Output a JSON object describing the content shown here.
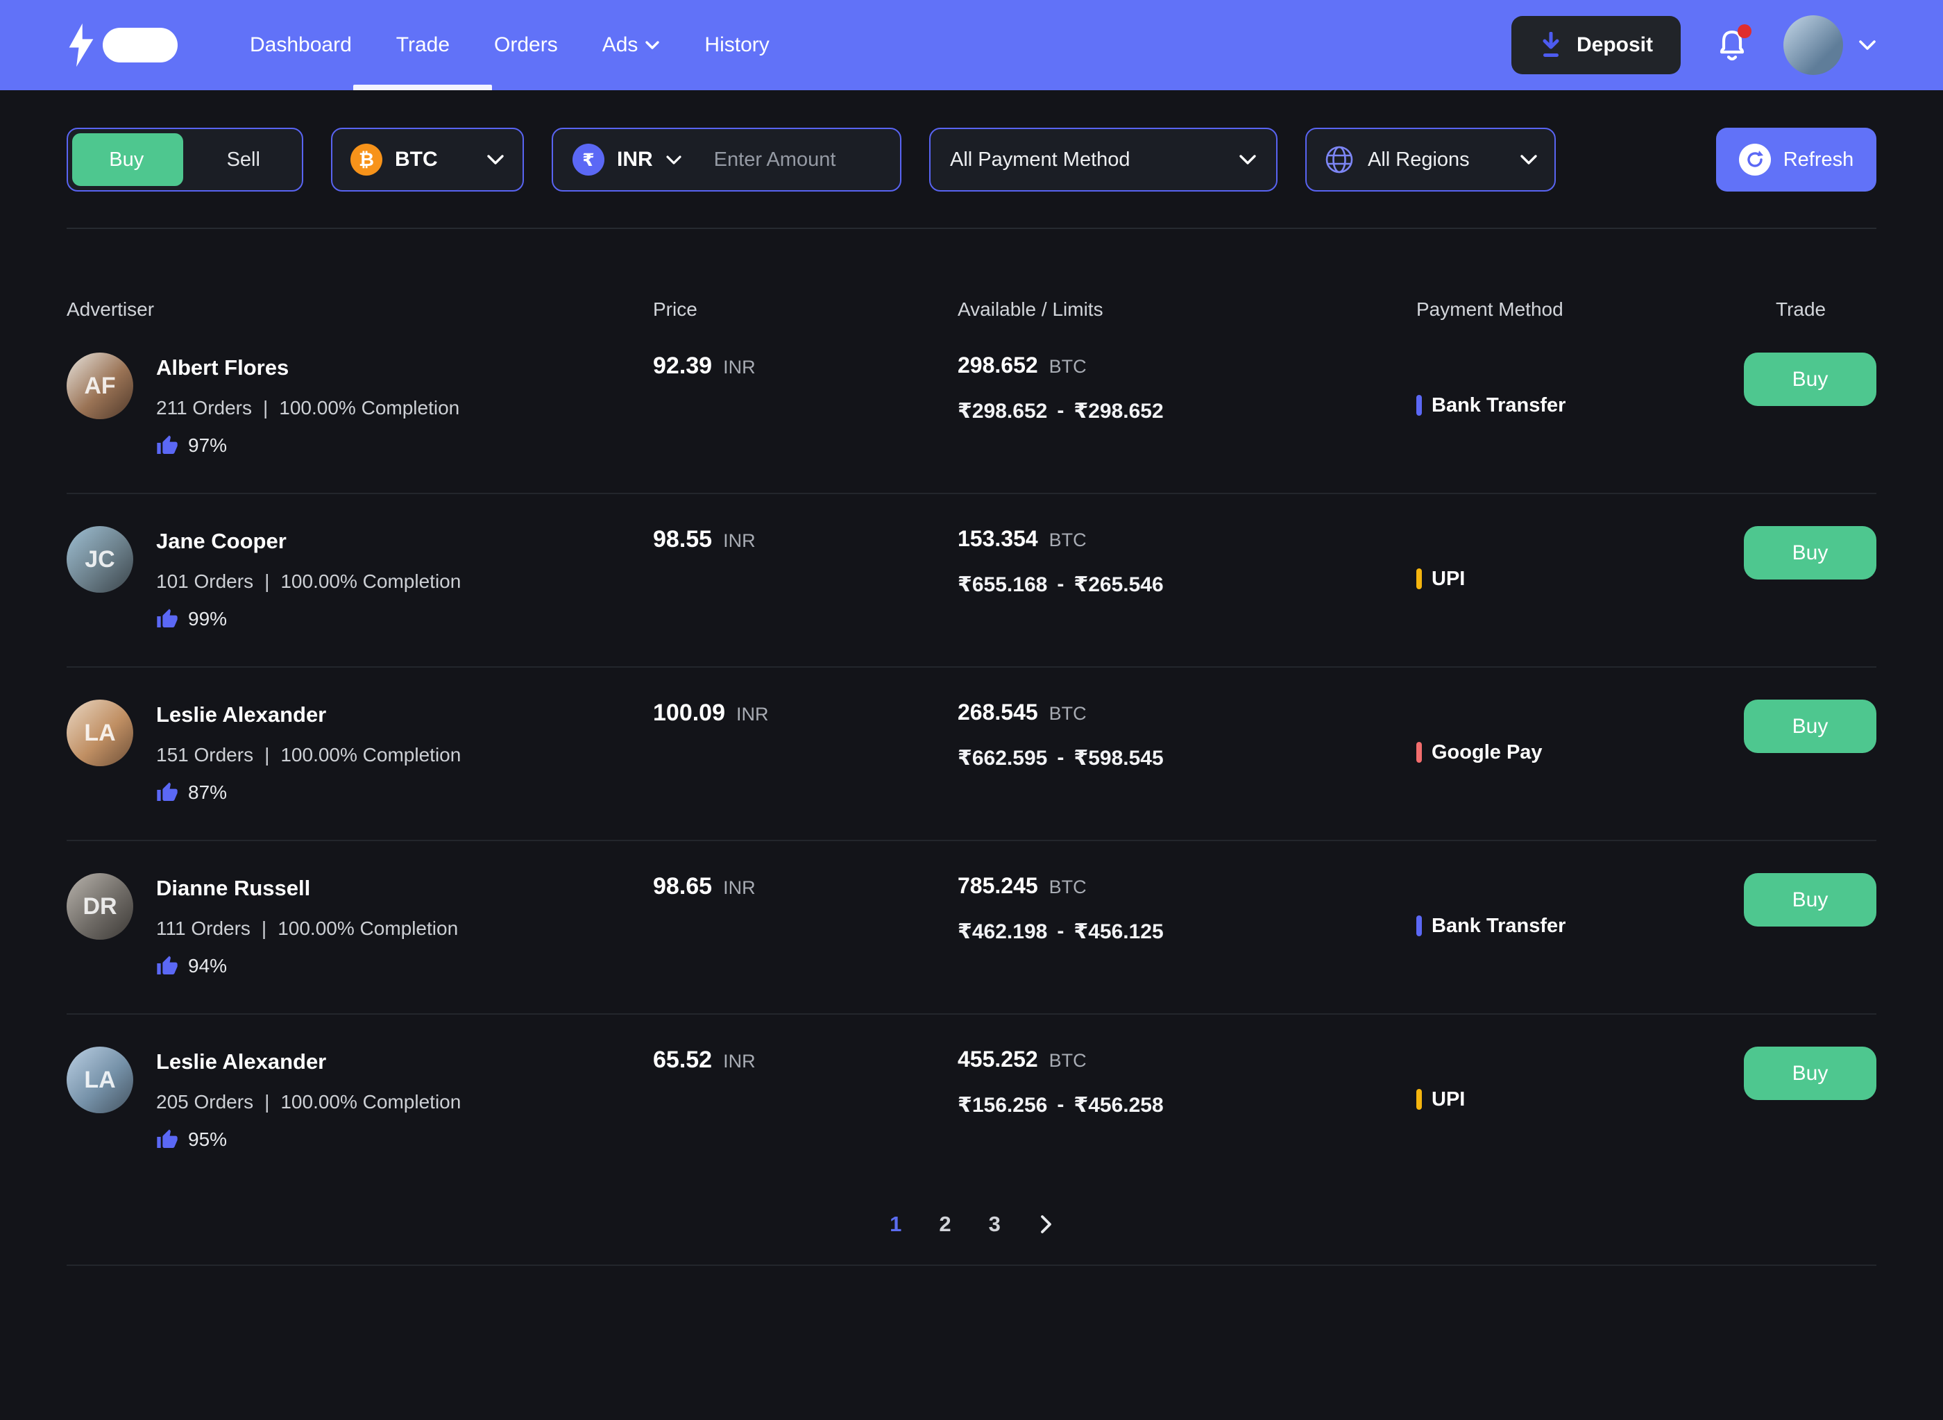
{
  "navbar": {
    "items": [
      {
        "label": "Dashboard",
        "active": false
      },
      {
        "label": "Trade",
        "active": true
      },
      {
        "label": "Orders",
        "active": false
      },
      {
        "label": "Ads",
        "active": false,
        "has_dropdown": true
      },
      {
        "label": "History",
        "active": false
      }
    ],
    "deposit_label": "Deposit",
    "notification_dot": true,
    "accent_color": "#6172f8"
  },
  "filters": {
    "side_toggle": {
      "buy_label": "Buy",
      "sell_label": "Sell",
      "active": "Buy",
      "active_color": "#4ec78f"
    },
    "crypto": {
      "label": "BTC",
      "icon": "bitcoin-icon",
      "icon_color": "#f7931a",
      "icon_glyph": "₿"
    },
    "fiat": {
      "label": "INR",
      "icon": "rupee-icon",
      "icon_color": "#5b68f5",
      "icon_glyph": "₹"
    },
    "amount_placeholder": "Enter Amount",
    "payment_method_label": "All Payment Method",
    "regions_label": "All Regions",
    "refresh_label": "Refresh"
  },
  "table": {
    "headers": [
      "Advertiser",
      "Price",
      "Available / Limits",
      "Payment Method",
      "Trade"
    ],
    "orders_separator": "|",
    "limits_separator": "-",
    "rows": [
      {
        "advertiser": {
          "name": "Albert Flores",
          "initials": "AF",
          "orders": "211 Orders",
          "completion": "100.00% Completion",
          "rating": "97%"
        },
        "price": {
          "value": "92.39",
          "currency": "INR"
        },
        "available": {
          "amount": "298.652",
          "unit": "BTC"
        },
        "limits": {
          "min": "₹298.652",
          "max": "₹298.652"
        },
        "payment": {
          "label": "Bank Transfer",
          "color": "#5b68f5"
        },
        "trade_label": "Buy"
      },
      {
        "advertiser": {
          "name": "Jane Cooper",
          "initials": "JC",
          "orders": "101 Orders",
          "completion": "100.00% Completion",
          "rating": "99%"
        },
        "price": {
          "value": "98.55",
          "currency": "INR"
        },
        "available": {
          "amount": "153.354",
          "unit": "BTC"
        },
        "limits": {
          "min": "₹655.168",
          "max": "₹265.546"
        },
        "payment": {
          "label": "UPI",
          "color": "#f5b50e"
        },
        "trade_label": "Buy"
      },
      {
        "advertiser": {
          "name": "Leslie Alexander",
          "initials": "LA",
          "orders": "151 Orders",
          "completion": "100.00% Completion",
          "rating": "87%"
        },
        "price": {
          "value": "100.09",
          "currency": "INR"
        },
        "available": {
          "amount": "268.545",
          "unit": "BTC"
        },
        "limits": {
          "min": "₹662.595",
          "max": "₹598.545"
        },
        "payment": {
          "label": "Google Pay",
          "color": "#f26d6d"
        },
        "trade_label": "Buy"
      },
      {
        "advertiser": {
          "name": "Dianne Russell",
          "initials": "DR",
          "orders": "111 Orders",
          "completion": "100.00% Completion",
          "rating": "94%"
        },
        "price": {
          "value": "98.65",
          "currency": "INR"
        },
        "available": {
          "amount": "785.245",
          "unit": "BTC"
        },
        "limits": {
          "min": "₹462.198",
          "max": "₹456.125"
        },
        "payment": {
          "label": "Bank Transfer",
          "color": "#5b68f5"
        },
        "trade_label": "Buy"
      },
      {
        "advertiser": {
          "name": "Leslie Alexander",
          "initials": "LA",
          "orders": "205 Orders",
          "completion": "100.00% Completion",
          "rating": "95%"
        },
        "price": {
          "value": "65.52",
          "currency": "INR"
        },
        "available": {
          "amount": "455.252",
          "unit": "BTC"
        },
        "limits": {
          "min": "₹156.256",
          "max": "₹456.258"
        },
        "payment": {
          "label": "UPI",
          "color": "#f5b50e"
        },
        "trade_label": "Buy"
      }
    ]
  },
  "pagination": {
    "pages": [
      "1",
      "2",
      "3"
    ],
    "active_index": 0
  }
}
